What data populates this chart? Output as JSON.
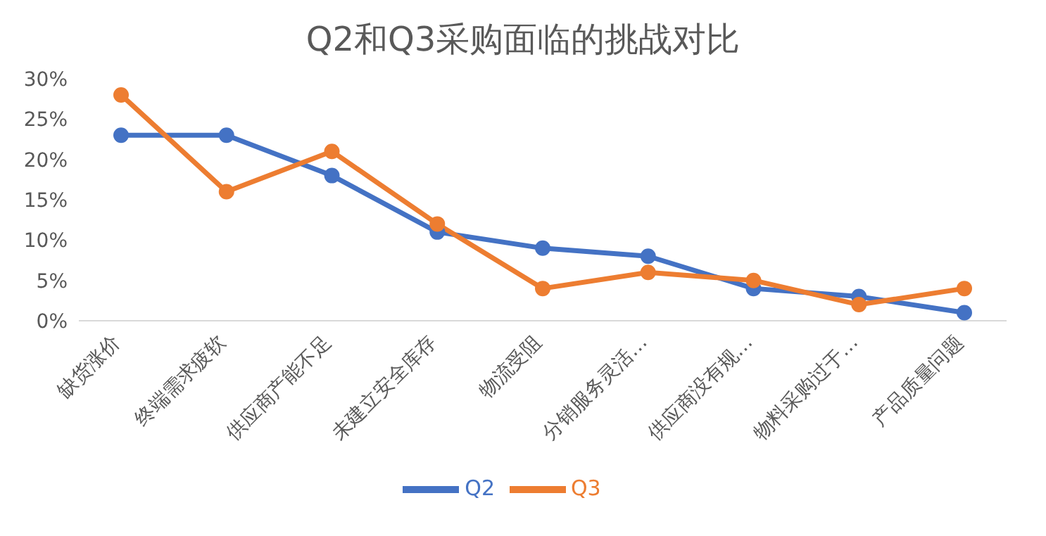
{
  "chart_data": {
    "type": "line",
    "title": "Q2和Q3采购面临的挑战对比",
    "categories": [
      "缺货涨价",
      "终端需求疲软",
      "供应商产能不足",
      "未建立安全库存",
      "物流受阻",
      "分销服务灵活…",
      "供应商没有规…",
      "物料采购过于…",
      "产品质量问题"
    ],
    "series": [
      {
        "name": "Q2",
        "color": "#4472c4",
        "values": [
          23,
          23,
          18,
          11,
          9,
          8,
          4,
          3,
          1
        ]
      },
      {
        "name": "Q3",
        "color": "#ed7d31",
        "values": [
          28,
          16,
          21,
          12,
          4,
          6,
          5,
          2,
          4
        ]
      }
    ],
    "ylim": [
      0,
      30
    ],
    "yticks": [
      {
        "value": 0,
        "label": "0%"
      },
      {
        "value": 5,
        "label": "5%"
      },
      {
        "value": 10,
        "label": "10%"
      },
      {
        "value": 15,
        "label": "15%"
      },
      {
        "value": 20,
        "label": "20%"
      },
      {
        "value": 25,
        "label": "25%"
      },
      {
        "value": 30,
        "label": "30%"
      }
    ],
    "grid": false,
    "legend": "bottom",
    "marker": "circle",
    "line_style": "solid"
  }
}
